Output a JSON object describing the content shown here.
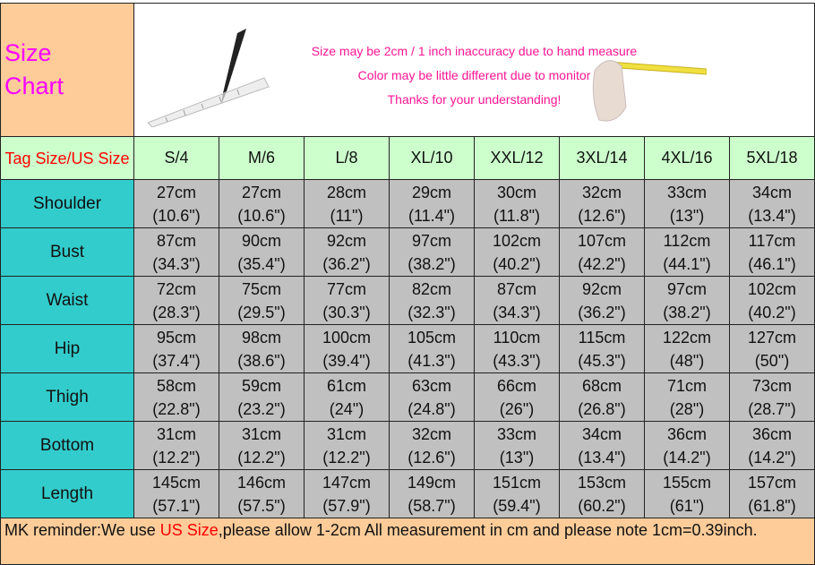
{
  "title": "Size Chart",
  "title_line1": "Size",
  "title_line2": "Chart",
  "banner": {
    "lines": [
      "Size may be 2cm / 1 inch inaccuracy due to hand measure",
      "Color may be little different due to monitor",
      "Thanks for your understanding!"
    ]
  },
  "header": {
    "label": "Tag Size/US Size",
    "sizes": [
      "S/4",
      "M/6",
      "L/8",
      "XL/10",
      "XXL/12",
      "3XL/14",
      "4XL/16",
      "5XL/18"
    ]
  },
  "rows": [
    {
      "label": "Shoulder",
      "values": [
        {
          "cm": "27cm",
          "in": "(10.6\")"
        },
        {
          "cm": "27cm",
          "in": "(10.6\")"
        },
        {
          "cm": "28cm",
          "in": "(11\")"
        },
        {
          "cm": "29cm",
          "in": "(11.4\")"
        },
        {
          "cm": "30cm",
          "in": "(11.8\")"
        },
        {
          "cm": "32cm",
          "in": "(12.6\")"
        },
        {
          "cm": "33cm",
          "in": "(13\")"
        },
        {
          "cm": "34cm",
          "in": "(13.4\")"
        }
      ]
    },
    {
      "label": "Bust",
      "values": [
        {
          "cm": "87cm",
          "in": "(34.3\")"
        },
        {
          "cm": "90cm",
          "in": "(35.4\")"
        },
        {
          "cm": "92cm",
          "in": "(36.2\")"
        },
        {
          "cm": "97cm",
          "in": "(38.2\")"
        },
        {
          "cm": "102cm",
          "in": "(40.2\")"
        },
        {
          "cm": "107cm",
          "in": "(42.2\")"
        },
        {
          "cm": "112cm",
          "in": "(44.1\")"
        },
        {
          "cm": "117cm",
          "in": "(46.1\")"
        }
      ]
    },
    {
      "label": "Waist",
      "values": [
        {
          "cm": "72cm",
          "in": "(28.3\")"
        },
        {
          "cm": "75cm",
          "in": "(29.5\")"
        },
        {
          "cm": "77cm",
          "in": "(30.3\")"
        },
        {
          "cm": "82cm",
          "in": "(32.3\")"
        },
        {
          "cm": "87cm",
          "in": "(34.3\")"
        },
        {
          "cm": "92cm",
          "in": "(36.2\")"
        },
        {
          "cm": "97cm",
          "in": "(38.2\")"
        },
        {
          "cm": "102cm",
          "in": "(40.2\")"
        }
      ]
    },
    {
      "label": "Hip",
      "values": [
        {
          "cm": "95cm",
          "in": "(37.4\")"
        },
        {
          "cm": "98cm",
          "in": "(38.6\")"
        },
        {
          "cm": "100cm",
          "in": "(39.4\")"
        },
        {
          "cm": "105cm",
          "in": "(41.3\")"
        },
        {
          "cm": "110cm",
          "in": "(43.3\")"
        },
        {
          "cm": "115cm",
          "in": "(45.3\")"
        },
        {
          "cm": "122cm",
          "in": "(48\")"
        },
        {
          "cm": "127cm",
          "in": "(50\")"
        }
      ]
    },
    {
      "label": "Thigh",
      "values": [
        {
          "cm": "58cm",
          "in": "(22.8\")"
        },
        {
          "cm": "59cm",
          "in": "(23.2\")"
        },
        {
          "cm": "61cm",
          "in": "(24\")"
        },
        {
          "cm": "63cm",
          "in": "(24.8\")"
        },
        {
          "cm": "66cm",
          "in": "(26\")"
        },
        {
          "cm": "68cm",
          "in": "(26.8\")"
        },
        {
          "cm": "71cm",
          "in": "(28\")"
        },
        {
          "cm": "73cm",
          "in": "(28.7\")"
        }
      ]
    },
    {
      "label": "Bottom",
      "values": [
        {
          "cm": "31cm",
          "in": "(12.2\")"
        },
        {
          "cm": "31cm",
          "in": "(12.2\")"
        },
        {
          "cm": "31cm",
          "in": "(12.2\")"
        },
        {
          "cm": "32cm",
          "in": "(12.6\")"
        },
        {
          "cm": "33cm",
          "in": "(13\")"
        },
        {
          "cm": "34cm",
          "in": "(13.4\")"
        },
        {
          "cm": "36cm",
          "in": "(14.2\")"
        },
        {
          "cm": "36cm",
          "in": "(14.2\")"
        }
      ]
    },
    {
      "label": "Length",
      "values": [
        {
          "cm": "145cm",
          "in": "(57.1\")"
        },
        {
          "cm": "146cm",
          "in": "(57.5\")"
        },
        {
          "cm": "147cm",
          "in": "(57.9\")"
        },
        {
          "cm": "149cm",
          "in": "(58.7\")"
        },
        {
          "cm": "151cm",
          "in": "(59.4\")"
        },
        {
          "cm": "153cm",
          "in": "(60.2\")"
        },
        {
          "cm": "155cm",
          "in": "(61\")"
        },
        {
          "cm": "157cm",
          "in": "(61.8\")"
        }
      ]
    }
  ],
  "footer": {
    "prefix": "MK reminder:We use ",
    "highlight": "US Size",
    "suffix": ",please allow 1-2cm All measurement in cm and please note 1cm=0.39inch."
  },
  "colors": {
    "title": "#ff00ff",
    "banner_text": "#ff1493",
    "header_bg": "#ccffcc",
    "label_bg": "#33cccc",
    "value_bg": "#c0c0c0",
    "note_bg": "#fdcc99",
    "highlight": "#ff0000"
  }
}
